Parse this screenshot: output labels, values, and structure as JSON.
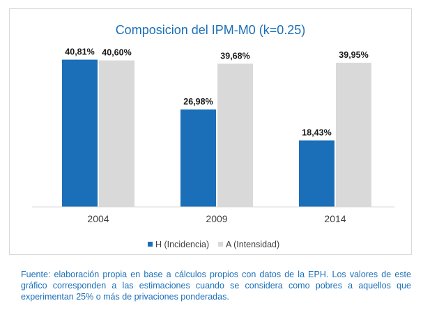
{
  "chart_data": {
    "type": "bar",
    "title": "Composicion del IPM-M0 (k=0.25)",
    "categories": [
      "2004",
      "2009",
      "2014"
    ],
    "series": [
      {
        "name": "H (Incidencia)",
        "values": [
          40.81,
          26.98,
          18.43
        ],
        "labels": [
          "40,81%",
          "26,98%",
          "18,43%"
        ],
        "color": "#1a6fb8"
      },
      {
        "name": "A (Intensidad)",
        "values": [
          40.6,
          39.68,
          39.95
        ],
        "labels": [
          "40,60%",
          "39,68%",
          "39,95%"
        ],
        "color": "#d9d9d9"
      }
    ],
    "ylim": [
      0,
      50
    ],
    "grid": false,
    "legend_position": "bottom"
  },
  "caption": "Fuente: elaboración propia en base a cálculos propios con datos de la EPH. Los valores de este gráfico corresponden a las estimaciones cuando se considera como pobres a aquellos que experimentan 25% o más de privaciones ponderadas."
}
